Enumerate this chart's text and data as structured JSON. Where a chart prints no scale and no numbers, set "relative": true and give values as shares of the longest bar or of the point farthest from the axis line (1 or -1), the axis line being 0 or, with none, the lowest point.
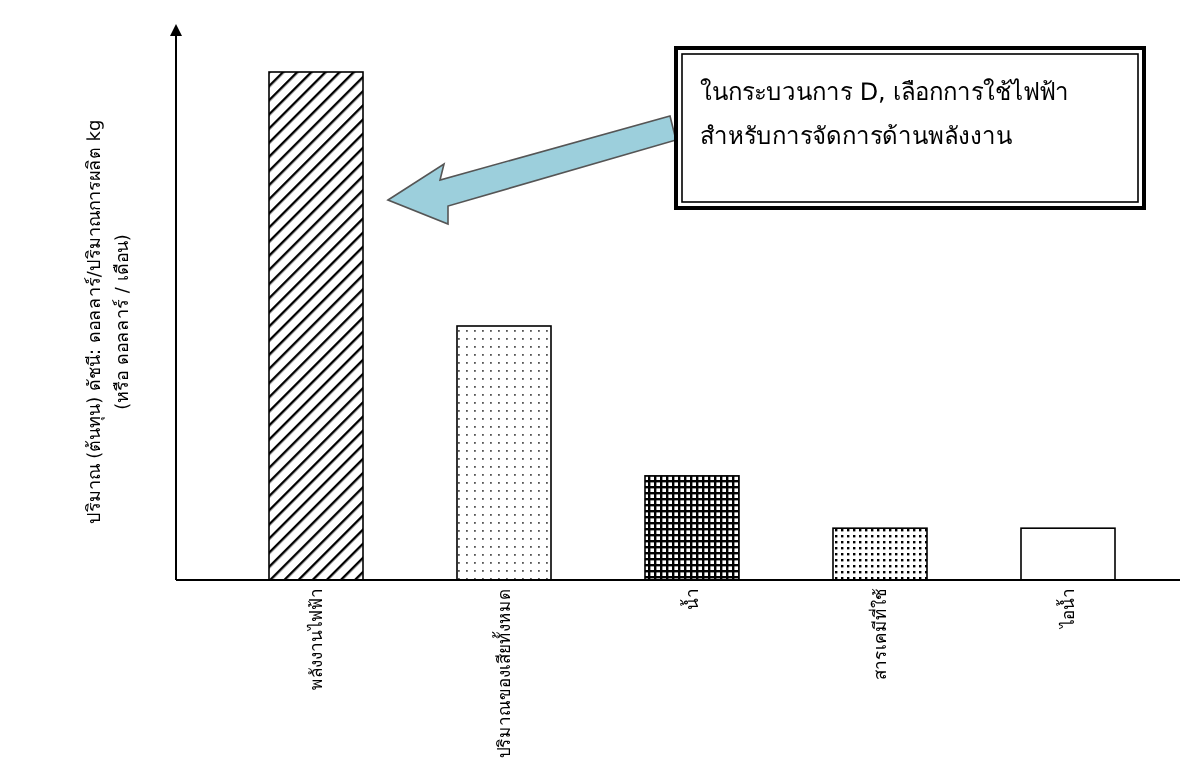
{
  "chart_data": {
    "type": "bar",
    "relative": true,
    "categories": [
      "พลังงานไฟฟ้า",
      "ปริมาณของเสียทั้งหมด",
      "น้ำ",
      "สารเคมีที่ใช้",
      "ไอน้ำ"
    ],
    "values": [
      1,
      0.5,
      0.205,
      0.102,
      0.102
    ],
    "ylabel": "ปริมาณ (ต้นทุน) ดัชนี: ดอลลาร์/ปริมาณการผลิต kg\n(หรือ ดอลลาร์ / เดือน)",
    "annotations": [
      "ในกระบวนการ D, เลือกการใช้ไฟฟ้า\nสำหรับการจัดการด้านพลังงาน"
    ]
  }
}
